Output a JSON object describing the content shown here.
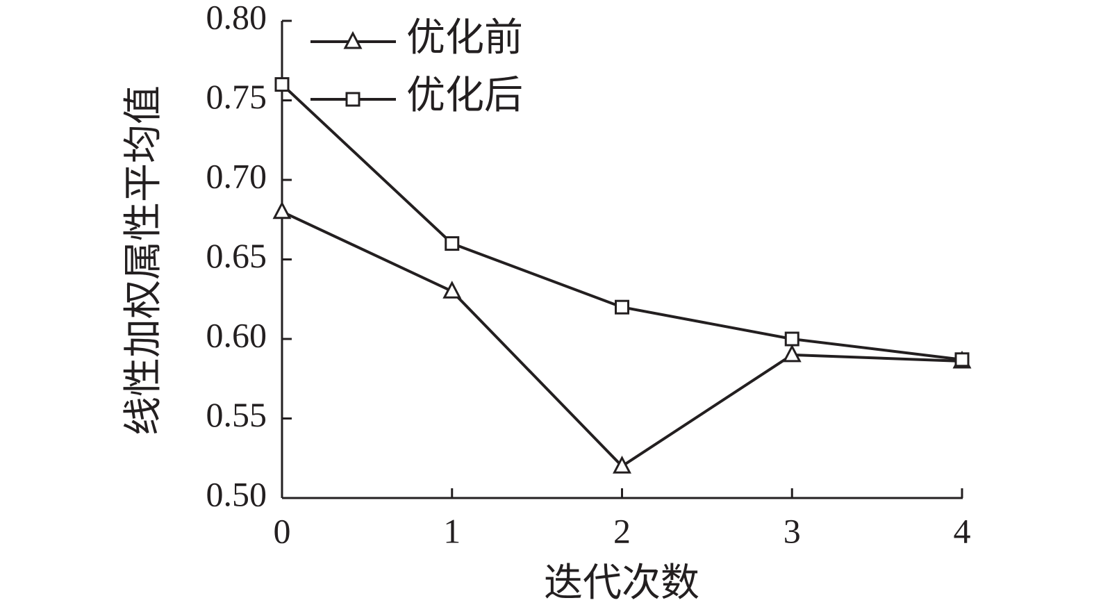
{
  "chart_data": {
    "type": "line",
    "x_label": "迭代次数",
    "y_label": "线性加权属性平均值",
    "x": [
      0,
      1,
      2,
      3,
      4
    ],
    "series": [
      {
        "name": "优化前",
        "color": "#231f20",
        "marker": "triangle",
        "values": [
          0.68,
          0.63,
          0.52,
          0.59,
          0.586
        ]
      },
      {
        "name": "优化后",
        "color": "#231f20",
        "marker": "square",
        "values": [
          0.76,
          0.66,
          0.62,
          0.6,
          0.587
        ]
      }
    ],
    "xlim": [
      0,
      4
    ],
    "xticks": [
      0,
      1,
      2,
      3,
      4
    ],
    "ylim": [
      0.5,
      0.8
    ],
    "yticks": [
      {
        "value": 0.5,
        "label": "0.50"
      },
      0.55,
      {
        "value": 0.6,
        "label": "0.60"
      },
      0.65,
      {
        "value": 0.7,
        "label": "0.70"
      },
      0.75,
      {
        "value": 0.8,
        "label": "0.80"
      }
    ],
    "grid": false,
    "legend": "upper left"
  }
}
